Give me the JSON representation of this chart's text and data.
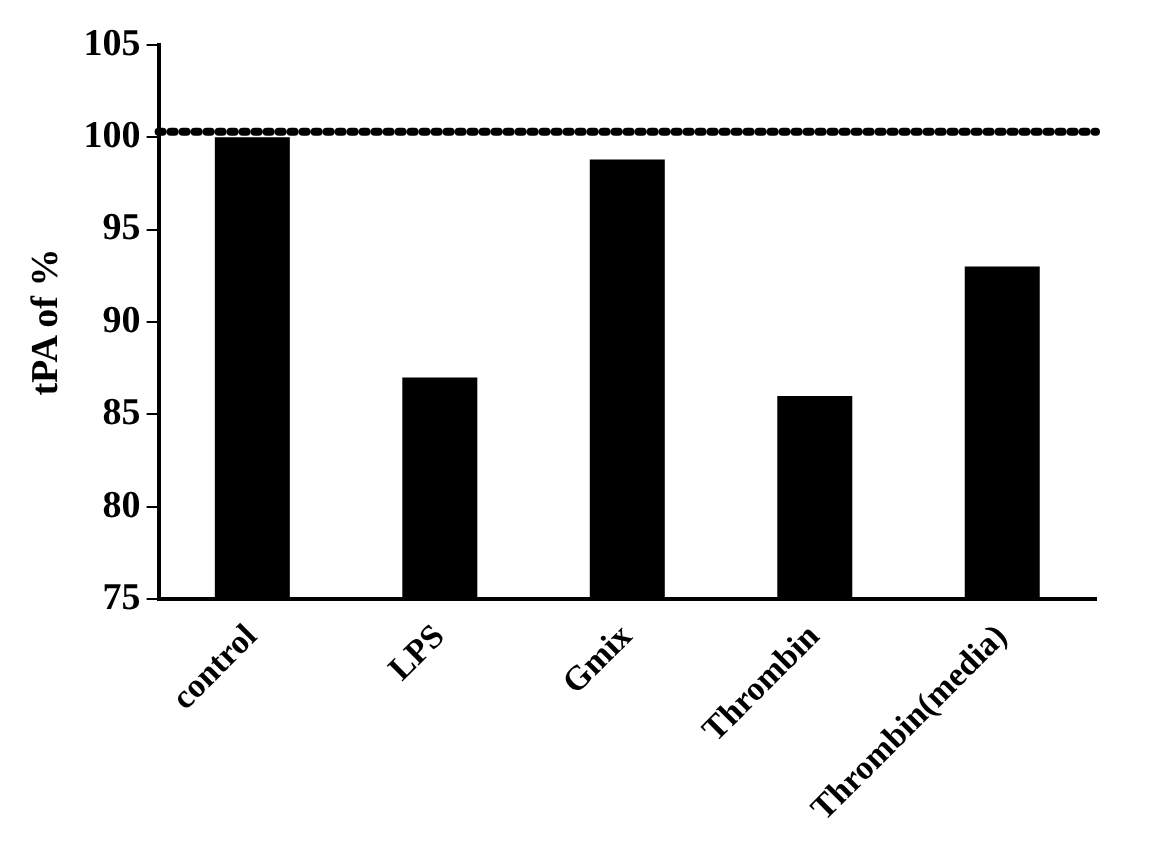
{
  "chart_data": {
    "type": "bar",
    "ylabel": "tPA of %",
    "categories": [
      "control",
      "LPS",
      "Gmix",
      "Thrombin",
      "Thrombin(media)"
    ],
    "values": [
      100,
      87,
      98.8,
      86,
      93
    ],
    "color": "#000000",
    "ylim": [
      75,
      105
    ],
    "yticks": [
      75,
      80,
      85,
      90,
      95,
      100,
      105
    ],
    "grid": false,
    "legend": false,
    "ref_lines": [
      {
        "axis": "y",
        "value": 100.3,
        "line_style": "dotted",
        "color": "#000000"
      }
    ]
  }
}
